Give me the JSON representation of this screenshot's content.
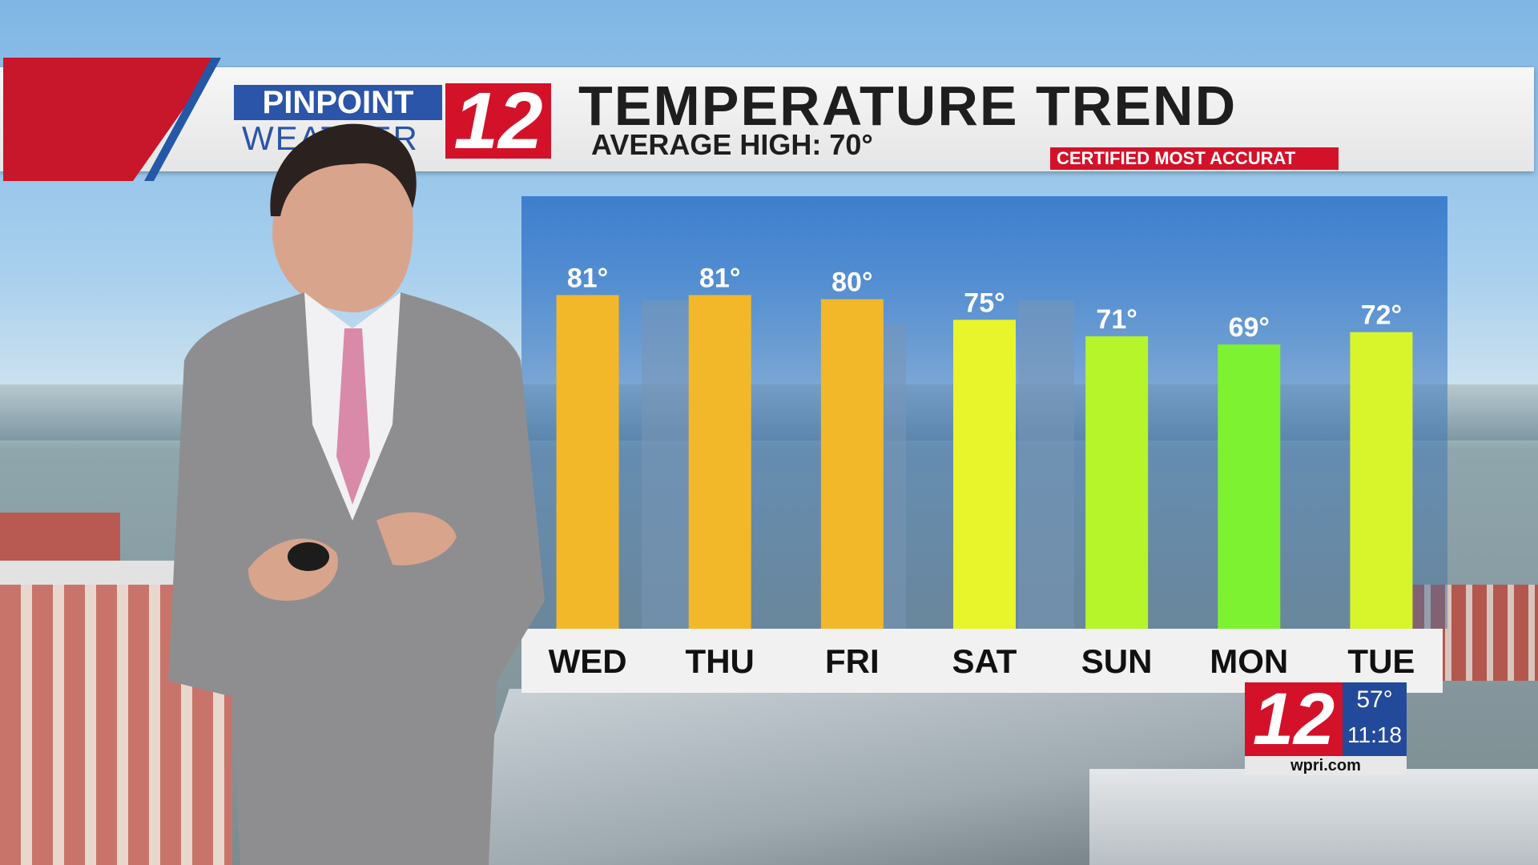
{
  "header": {
    "logo_pinpoint": "PINPOINT",
    "logo_weather": "WEATHER",
    "logo_number": "12",
    "title": "TEMPERATURE TREND",
    "subtitle": "AVERAGE HIGH:  70°",
    "ticker": "CERTIFIED MOST ACCURAT"
  },
  "chart_data": {
    "type": "bar",
    "title": "TEMPERATURE TREND",
    "categories": [
      "WED",
      "THU",
      "FRI",
      "SAT",
      "SUN",
      "MON",
      "TUE"
    ],
    "values": [
      81,
      81,
      80,
      75,
      71,
      69,
      72
    ],
    "value_labels": [
      "81°",
      "81°",
      "80°",
      "75°",
      "71°",
      "69°",
      "72°"
    ],
    "bar_colors": [
      "#f2b829",
      "#f2b829",
      "#f2b829",
      "#e8f52a",
      "#b5f52a",
      "#7cf230",
      "#d8f52c"
    ],
    "ylim": [
      0,
      105
    ],
    "grid": false,
    "legend": "none"
  },
  "bug": {
    "logo_number": "12",
    "temperature": "57°",
    "time": "11:18",
    "site": "wpri.com"
  },
  "colors": {
    "brand_red": "#d3122a",
    "brand_blue": "#2a55a8"
  }
}
